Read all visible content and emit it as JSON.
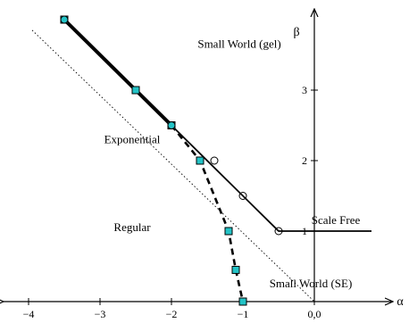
{
  "chart_data": {
    "type": "line",
    "xlabel": "α",
    "ylabel": "β",
    "xlim": [
      -4.4,
      1.15
    ],
    "ylim": [
      -0.15,
      4.2
    ],
    "x_ticks": [
      {
        "value": -4,
        "label": "−4"
      },
      {
        "value": -3,
        "label": "−3"
      },
      {
        "value": -2,
        "label": "−2"
      },
      {
        "value": -1,
        "label": "−1"
      },
      {
        "value": 0,
        "label": "0,0"
      }
    ],
    "y_ticks": [
      {
        "value": 1,
        "label": "1"
      },
      {
        "value": 2,
        "label": "2"
      },
      {
        "value": 3,
        "label": "3"
      }
    ],
    "series": [
      {
        "style": "solid-thick",
        "points": [
          [
            -3.5,
            4.0
          ],
          [
            -2.0,
            2.5
          ]
        ]
      },
      {
        "style": "solid",
        "points": [
          [
            -2.0,
            2.5
          ],
          [
            -0.5,
            1.0
          ],
          [
            0.8,
            1.0
          ]
        ]
      },
      {
        "style": "dashed-thick",
        "points": [
          [
            -2.0,
            2.5
          ],
          [
            -1.6,
            2.0
          ],
          [
            -1.2,
            1.0
          ],
          [
            -1.1,
            0.45
          ],
          [
            -1.0,
            0.0
          ]
        ]
      },
      {
        "style": "dotted",
        "points": [
          [
            -3.95,
            3.85
          ],
          [
            0.0,
            0.0
          ]
        ]
      }
    ],
    "markers": {
      "circles": [
        [
          -3.5,
          4.0
        ],
        [
          -2.0,
          2.5
        ],
        [
          -1.4,
          2.0
        ],
        [
          -1.0,
          1.5
        ],
        [
          -0.5,
          1.0
        ]
      ],
      "squares": [
        [
          -3.5,
          4.0
        ],
        [
          -2.5,
          3.0
        ],
        [
          -2.0,
          2.5
        ],
        [
          -1.6,
          2.0
        ],
        [
          -1.2,
          1.0
        ],
        [
          -1.1,
          0.45
        ],
        [
          -1.0,
          0.0
        ]
      ]
    },
    "square_color": "#23c3c6",
    "annotations": [
      {
        "text": "Small World (gel)",
        "x": -1.05,
        "y": 3.6
      },
      {
        "text": "Exponential",
        "x": -2.55,
        "y": 2.25
      },
      {
        "text": "Regular",
        "x": -2.55,
        "y": 1.0
      },
      {
        "text": "Scale Free",
        "x": 0.3,
        "y": 1.1
      },
      {
        "text": "Small World (SE)",
        "x": -0.05,
        "y": 0.2
      }
    ]
  }
}
